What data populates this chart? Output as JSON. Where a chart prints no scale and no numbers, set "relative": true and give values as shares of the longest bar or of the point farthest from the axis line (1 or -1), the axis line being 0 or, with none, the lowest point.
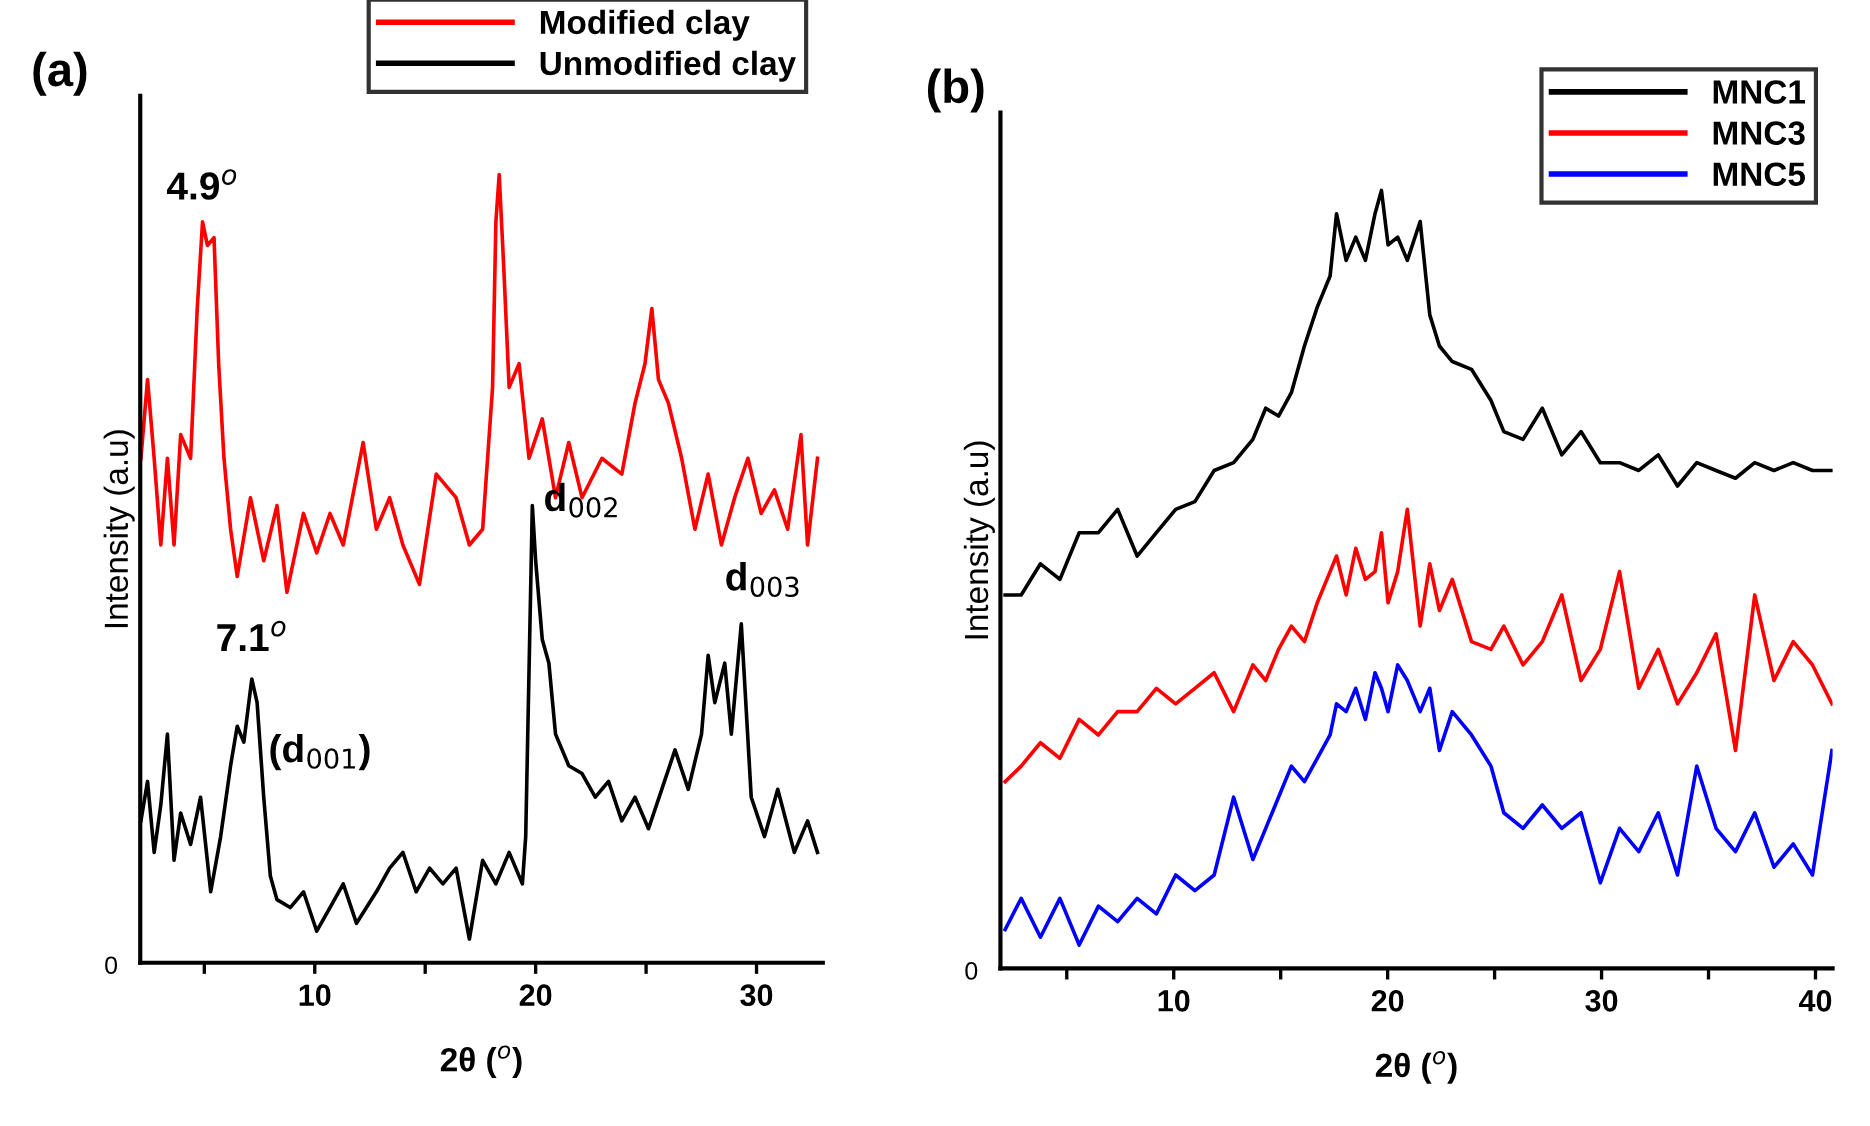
{
  "chart_data": [
    {
      "type": "line",
      "title": "(a)",
      "xlabel": "2θ ($^{o}$)",
      "ylabel": "Intensity (a.u)",
      "relative": true,
      "xlim": [
        2.1,
        33
      ],
      "xticks": [
        {
          "value": 5,
          "label": null
        },
        10,
        {
          "value": 15,
          "label": null
        },
        20,
        {
          "value": 25,
          "label": null
        },
        30
      ],
      "legend": "top right",
      "grid": false,
      "marker": "none",
      "line_style": "solid",
      "series": [
        {
          "name": "Modified clay",
          "color": "#ff0000",
          "x": [
            2.13,
            2.43,
            2.73,
            3.03,
            3.33,
            3.63,
            3.93,
            4.38,
            4.68,
            4.92,
            5.14,
            5.44,
            5.65,
            5.89,
            6.19,
            6.49,
            7.09,
            7.69,
            8.29,
            8.74,
            9.49,
            10.09,
            10.69,
            11.29,
            12.19,
            12.79,
            13.39,
            13.99,
            14.74,
            15.5,
            16.4,
            17.0,
            17.6,
            18.05,
            18.2,
            18.35,
            18.56,
            18.8,
            19.25,
            19.7,
            20.3,
            20.9,
            21.5,
            22.1,
            23.0,
            23.9,
            24.5,
            24.95,
            25.26,
            25.56,
            26.01,
            26.61,
            27.21,
            27.81,
            28.41,
            29.01,
            29.61,
            30.21,
            30.81,
            31.41,
            32.01,
            32.31,
            32.76
          ],
          "values": [
            0.64,
            0.74,
            0.64,
            0.53,
            0.64,
            0.53,
            0.67,
            0.64,
            0.83,
            0.94,
            0.91,
            0.92,
            0.76,
            0.64,
            0.55,
            0.49,
            0.59,
            0.51,
            0.58,
            0.47,
            0.57,
            0.52,
            0.57,
            0.53,
            0.66,
            0.55,
            0.59,
            0.53,
            0.48,
            0.62,
            0.59,
            0.53,
            0.55,
            0.73,
            0.94,
            1.0,
            0.88,
            0.73,
            0.76,
            0.64,
            0.69,
            0.59,
            0.66,
            0.59,
            0.64,
            0.62,
            0.71,
            0.76,
            0.83,
            0.74,
            0.71,
            0.64,
            0.55,
            0.62,
            0.53,
            0.59,
            0.64,
            0.57,
            0.6,
            0.55,
            0.67,
            0.53,
            0.64
          ]
        },
        {
          "name": "Unmodified clay",
          "color": "#000000",
          "x": [
            2.13,
            2.43,
            2.73,
            3.03,
            3.33,
            3.63,
            3.93,
            4.38,
            4.83,
            5.29,
            5.74,
            6.19,
            6.49,
            6.79,
            7.15,
            7.39,
            7.69,
            7.99,
            8.29,
            8.89,
            9.49,
            10.09,
            10.69,
            11.29,
            11.89,
            12.79,
            13.39,
            13.99,
            14.59,
            15.2,
            15.8,
            16.4,
            17.0,
            17.6,
            18.2,
            18.8,
            19.4,
            19.55,
            19.85,
            20.0,
            20.3,
            20.6,
            20.9,
            21.5,
            22.1,
            22.7,
            23.3,
            23.9,
            24.5,
            25.11,
            25.71,
            26.31,
            26.91,
            27.51,
            27.81,
            28.11,
            28.56,
            28.86,
            29.31,
            29.76,
            30.36,
            30.96,
            31.71,
            32.31,
            32.76
          ],
          "values": [
            0.18,
            0.23,
            0.14,
            0.2,
            0.29,
            0.13,
            0.19,
            0.15,
            0.21,
            0.09,
            0.16,
            0.25,
            0.3,
            0.28,
            0.36,
            0.33,
            0.21,
            0.11,
            0.08,
            0.07,
            0.09,
            0.04,
            0.07,
            0.1,
            0.05,
            0.09,
            0.12,
            0.14,
            0.09,
            0.12,
            0.1,
            0.12,
            0.03,
            0.13,
            0.1,
            0.14,
            0.1,
            0.16,
            0.58,
            0.51,
            0.41,
            0.38,
            0.29,
            0.25,
            0.24,
            0.21,
            0.23,
            0.18,
            0.21,
            0.17,
            0.22,
            0.27,
            0.22,
            0.29,
            0.39,
            0.33,
            0.38,
            0.29,
            0.43,
            0.21,
            0.16,
            0.22,
            0.14,
            0.18,
            0.14
          ]
        }
      ],
      "annotations": [
        {
          "text": "4.9$^{o}$",
          "x": 4.92,
          "y": 0.94
        },
        {
          "text": "7.1$^{o}$",
          "x": 7.15,
          "y": 0.36
        },
        {
          "text": "(d$_{001}$)",
          "x": 7.15,
          "y": 0.36
        },
        {
          "text": "d$_{002}$",
          "x": 19.85,
          "y": 0.58
        },
        {
          "text": "d$_{003}$",
          "x": 29.31,
          "y": 0.43
        },
        "0"
      ]
    },
    {
      "type": "line",
      "title": "(b)",
      "xlabel": "2θ ($^{o}$)",
      "ylabel": "Intensity (a.u)",
      "relative": true,
      "xlim": [
        1.9,
        40.8
      ],
      "xticks": [
        {
          "value": 5,
          "label": null
        },
        10,
        {
          "value": 15,
          "label": null
        },
        20,
        {
          "value": 25,
          "label": null
        },
        30,
        {
          "value": 35,
          "label": null
        },
        40
      ],
      "annotations": [
        "0"
      ],
      "legend": "top right",
      "grid": false,
      "marker": "none",
      "line_style": "solid",
      "x": [
        2.12,
        2.87,
        3.77,
        4.68,
        5.58,
        6.48,
        7.38,
        8.29,
        9.19,
        10.09,
        10.99,
        11.89,
        12.8,
        13.7,
        14.3,
        14.9,
        15.5,
        16.11,
        16.71,
        17.31,
        17.61,
        18.06,
        18.51,
        18.96,
        19.41,
        19.71,
        20.02,
        20.47,
        20.92,
        21.52,
        21.97,
        22.42,
        23.02,
        23.92,
        24.83,
        25.43,
        26.33,
        27.23,
        28.14,
        29.04,
        29.94,
        30.84,
        31.74,
        32.65,
        33.55,
        34.45,
        35.35,
        36.26,
        37.16,
        38.06,
        38.96,
        39.86,
        40.77
      ],
      "series": [
        {
          "name": "MNC1",
          "color": "#000000",
          "values": [
            0.48,
            0.48,
            0.52,
            0.5,
            0.56,
            0.56,
            0.59,
            0.53,
            0.56,
            0.59,
            0.6,
            0.64,
            0.65,
            0.68,
            0.72,
            0.71,
            0.74,
            0.8,
            0.85,
            0.89,
            0.97,
            0.91,
            0.94,
            0.91,
            0.97,
            1.0,
            0.93,
            0.94,
            0.91,
            0.96,
            0.84,
            0.8,
            0.78,
            0.77,
            0.73,
            0.69,
            0.68,
            0.72,
            0.66,
            0.69,
            0.65,
            0.65,
            0.64,
            0.66,
            0.62,
            0.65,
            0.64,
            0.63,
            0.65,
            0.64,
            0.65,
            0.64,
            0.64
          ]
        },
        {
          "name": "MNC3",
          "color": "#ff0000",
          "values": [
            0.24,
            0.26,
            0.29,
            0.27,
            0.32,
            0.3,
            0.33,
            0.33,
            0.36,
            0.34,
            0.36,
            0.38,
            0.33,
            0.39,
            0.37,
            0.41,
            0.44,
            0.42,
            0.47,
            0.51,
            0.53,
            0.48,
            0.54,
            0.5,
            0.51,
            0.56,
            0.47,
            0.51,
            0.59,
            0.44,
            0.52,
            0.46,
            0.5,
            0.42,
            0.41,
            0.44,
            0.39,
            0.42,
            0.48,
            0.37,
            0.41,
            0.51,
            0.36,
            0.41,
            0.34,
            0.38,
            0.43,
            0.28,
            0.48,
            0.37,
            0.42,
            0.39,
            0.34
          ]
        },
        {
          "name": "MNC5",
          "color": "#0000ff",
          "values": [
            0.05,
            0.09,
            0.04,
            0.09,
            0.03,
            0.08,
            0.06,
            0.09,
            0.07,
            0.12,
            0.1,
            0.12,
            0.22,
            0.14,
            0.18,
            0.22,
            0.26,
            0.24,
            0.27,
            0.3,
            0.34,
            0.33,
            0.36,
            0.32,
            0.38,
            0.36,
            0.33,
            0.39,
            0.37,
            0.33,
            0.36,
            0.28,
            0.33,
            0.3,
            0.26,
            0.2,
            0.18,
            0.21,
            0.18,
            0.2,
            0.11,
            0.18,
            0.15,
            0.2,
            0.12,
            0.26,
            0.18,
            0.15,
            0.2,
            0.13,
            0.16,
            0.12,
            0.28
          ]
        }
      ]
    }
  ]
}
